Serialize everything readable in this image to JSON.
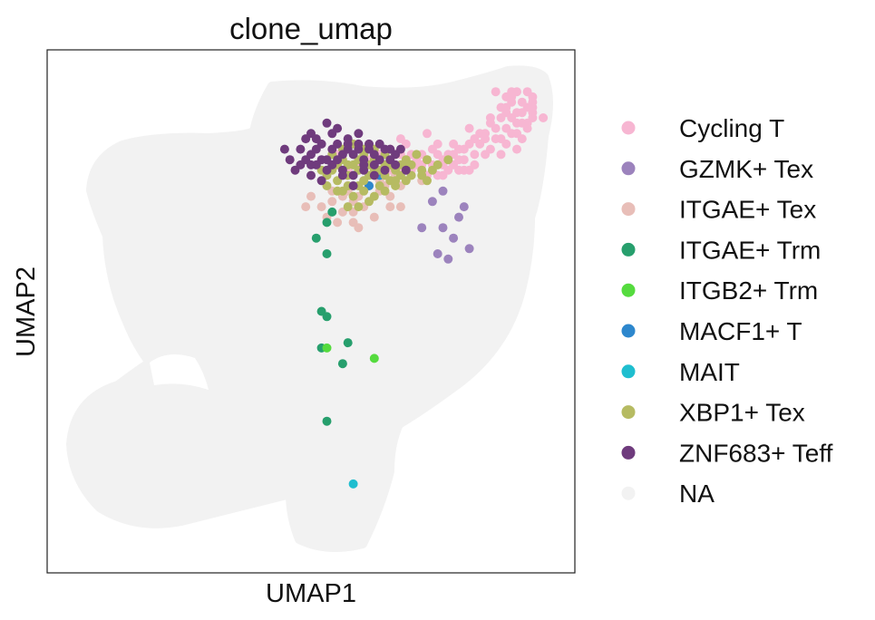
{
  "chart_data": {
    "type": "scatter",
    "title": "clone_umap",
    "xlabel": "UMAP1",
    "ylabel": "UMAP2",
    "grid": false,
    "axis_ticks": false,
    "legend_position": "right",
    "xlim": [
      0,
      100
    ],
    "ylim": [
      0,
      100
    ],
    "background_cells_color": "#f2f2f2",
    "series": [
      {
        "name": "Cycling T",
        "color": "#f7b6d2",
        "points": [
          [
            85,
            92
          ],
          [
            88,
            91
          ],
          [
            87,
            89
          ],
          [
            90,
            88
          ],
          [
            86,
            87
          ],
          [
            84,
            86
          ],
          [
            89,
            86
          ],
          [
            92,
            87
          ],
          [
            91,
            85
          ],
          [
            88,
            84
          ],
          [
            85,
            83
          ],
          [
            83,
            84
          ],
          [
            87,
            82
          ],
          [
            90,
            83
          ],
          [
            82,
            82
          ],
          [
            80,
            82
          ],
          [
            84,
            81
          ],
          [
            78,
            81
          ],
          [
            81,
            80
          ],
          [
            76,
            80
          ],
          [
            79,
            79
          ],
          [
            74,
            80
          ],
          [
            77,
            78
          ],
          [
            72,
            79
          ],
          [
            75,
            78
          ],
          [
            70,
            79
          ],
          [
            73,
            78
          ],
          [
            68,
            79
          ],
          [
            71,
            78
          ],
          [
            66,
            78
          ],
          [
            69,
            77
          ],
          [
            64,
            78
          ],
          [
            67,
            77
          ],
          [
            62,
            78
          ],
          [
            65,
            77
          ],
          [
            76,
            77
          ],
          [
            78,
            77
          ],
          [
            80,
            77
          ],
          [
            74,
            76
          ],
          [
            72,
            76
          ],
          [
            86,
            80
          ],
          [
            89,
            81
          ],
          [
            91,
            89
          ],
          [
            92,
            90
          ],
          [
            92,
            91
          ],
          [
            88,
            90
          ],
          [
            87,
            88
          ],
          [
            85,
            85
          ],
          [
            83,
            80
          ],
          [
            81,
            78
          ],
          [
            79,
            77
          ],
          [
            70,
            78
          ],
          [
            68,
            77
          ],
          [
            74,
            82
          ],
          [
            60,
            78
          ],
          [
            63,
            80
          ],
          [
            65,
            81
          ],
          [
            67,
            83
          ],
          [
            72,
            84
          ],
          [
            77,
            82
          ],
          [
            80,
            85
          ],
          [
            82,
            84
          ],
          [
            84,
            87
          ],
          [
            86,
            89
          ],
          [
            88,
            87
          ],
          [
            90,
            86
          ],
          [
            92,
            88
          ],
          [
            90,
            90
          ],
          [
            89,
            92
          ],
          [
            91,
            92
          ],
          [
            88,
            92
          ],
          [
            87,
            91
          ],
          [
            94,
            87
          ],
          [
            91,
            86
          ],
          [
            89,
            88
          ],
          [
            87,
            85
          ],
          [
            83,
            83
          ],
          [
            81,
            83
          ],
          [
            79,
            81
          ],
          [
            77,
            80
          ],
          [
            75,
            79
          ],
          [
            73,
            81
          ],
          [
            71,
            80
          ],
          [
            69,
            80
          ],
          [
            67,
            80
          ],
          [
            65,
            79
          ],
          [
            63,
            79
          ],
          [
            61,
            79
          ],
          [
            59,
            78
          ],
          [
            57,
            77
          ],
          [
            55,
            80
          ],
          [
            63,
            76
          ],
          [
            68,
            82
          ],
          [
            75,
            76
          ],
          [
            78,
            79
          ],
          [
            86,
            83
          ],
          [
            89,
            84
          ],
          [
            92,
            89
          ]
        ]
      },
      {
        "name": "GZMK+ Tex",
        "color": "#9c83bd",
        "points": [
          [
            75,
            73
          ],
          [
            73,
            71
          ],
          [
            79,
            70
          ],
          [
            78,
            68
          ],
          [
            75,
            66
          ],
          [
            71,
            66
          ],
          [
            77,
            64
          ],
          [
            74,
            61
          ],
          [
            76,
            60
          ],
          [
            80,
            62
          ]
        ]
      },
      {
        "name": "ITGAE+ Tex",
        "color": "#e8beb8",
        "points": [
          [
            57,
            73
          ],
          [
            59,
            72
          ],
          [
            63,
            73
          ],
          [
            65,
            72
          ],
          [
            58,
            71
          ],
          [
            60,
            70
          ],
          [
            54,
            71
          ],
          [
            56,
            69
          ],
          [
            52,
            70
          ],
          [
            65,
            70
          ],
          [
            62,
            68
          ],
          [
            58,
            69
          ],
          [
            55,
            67
          ],
          [
            53,
            68
          ],
          [
            61,
            74
          ],
          [
            64,
            74
          ],
          [
            67,
            74
          ],
          [
            57,
            74
          ],
          [
            60,
            75
          ],
          [
            63,
            75
          ],
          [
            66,
            76
          ],
          [
            69,
            76
          ],
          [
            71,
            75
          ],
          [
            60,
            77
          ],
          [
            62,
            76
          ],
          [
            50,
            72
          ],
          [
            49,
            70
          ],
          [
            58,
            67
          ],
          [
            59,
            66
          ],
          [
            67,
            70
          ],
          [
            56,
            72
          ],
          [
            54,
            73
          ]
        ]
      },
      {
        "name": "ITGAE+ Trm",
        "color": "#279f6d",
        "points": [
          [
            54,
            69
          ],
          [
            53,
            67
          ],
          [
            51,
            64
          ],
          [
            53,
            61
          ],
          [
            52,
            50
          ],
          [
            53,
            49
          ],
          [
            52,
            43
          ],
          [
            57,
            44
          ],
          [
            56,
            40
          ],
          [
            53,
            29
          ]
        ]
      },
      {
        "name": "ITGB2+ Trm",
        "color": "#55db3e",
        "points": [
          [
            53,
            43
          ],
          [
            62,
            41
          ]
        ]
      },
      {
        "name": "MACF1+ T",
        "color": "#2d87cd",
        "points": [
          [
            63,
            76
          ],
          [
            61,
            74
          ]
        ]
      },
      {
        "name": "MAIT",
        "color": "#1fbecf",
        "points": [
          [
            58,
            17
          ]
        ]
      },
      {
        "name": "XBP1+ Tex",
        "color": "#b6bb62",
        "points": [
          [
            54,
            77
          ],
          [
            56,
            79
          ],
          [
            58,
            78
          ],
          [
            60,
            80
          ],
          [
            62,
            79
          ],
          [
            64,
            78
          ],
          [
            66,
            77
          ],
          [
            68,
            79
          ],
          [
            70,
            80
          ],
          [
            72,
            79
          ],
          [
            55,
            75
          ],
          [
            57,
            76
          ],
          [
            59,
            74
          ],
          [
            61,
            76
          ],
          [
            63,
            77
          ],
          [
            65,
            75
          ],
          [
            67,
            76
          ],
          [
            69,
            76
          ],
          [
            71,
            77
          ],
          [
            73,
            77
          ],
          [
            56,
            73
          ],
          [
            58,
            72
          ],
          [
            60,
            73
          ],
          [
            62,
            72
          ],
          [
            64,
            73
          ],
          [
            66,
            74
          ],
          [
            68,
            75
          ],
          [
            57,
            70
          ],
          [
            59,
            70
          ],
          [
            61,
            71
          ],
          [
            53,
            74
          ],
          [
            55,
            73
          ],
          [
            52,
            77
          ],
          [
            54,
            80
          ],
          [
            56,
            81
          ],
          [
            58,
            82
          ],
          [
            60,
            81
          ],
          [
            62,
            81
          ],
          [
            64,
            80
          ],
          [
            66,
            80
          ],
          [
            72,
            75
          ],
          [
            74,
            78
          ],
          [
            76,
            79
          ],
          [
            68,
            78
          ],
          [
            65,
            78
          ],
          [
            63,
            74
          ],
          [
            59,
            79
          ],
          [
            57,
            78
          ],
          [
            55,
            78
          ],
          [
            53,
            76
          ],
          [
            60,
            75
          ],
          [
            62,
            77
          ],
          [
            64,
            76
          ],
          [
            66,
            75
          ],
          [
            67,
            78
          ],
          [
            69,
            78
          ],
          [
            71,
            76
          ],
          [
            57,
            74
          ],
          [
            59,
            77
          ],
          [
            61,
            78
          ]
        ]
      },
      {
        "name": "ZNF683+ Teff",
        "color": "#6f3b7d",
        "points": [
          [
            50,
            84
          ],
          [
            53,
            86
          ],
          [
            55,
            85
          ],
          [
            57,
            83
          ],
          [
            59,
            84
          ],
          [
            52,
            82
          ],
          [
            54,
            81
          ],
          [
            56,
            80
          ],
          [
            58,
            80
          ],
          [
            60,
            79
          ],
          [
            62,
            80
          ],
          [
            64,
            81
          ],
          [
            66,
            80
          ],
          [
            48,
            81
          ],
          [
            50,
            80
          ],
          [
            52,
            79
          ],
          [
            54,
            78
          ],
          [
            56,
            77
          ],
          [
            58,
            76
          ],
          [
            60,
            77
          ],
          [
            62,
            78
          ],
          [
            46,
            79
          ],
          [
            49,
            83
          ],
          [
            51,
            81
          ],
          [
            53,
            79
          ],
          [
            55,
            82
          ],
          [
            57,
            81
          ],
          [
            59,
            81
          ],
          [
            61,
            82
          ],
          [
            63,
            79
          ],
          [
            65,
            79
          ],
          [
            67,
            81
          ],
          [
            47,
            77
          ],
          [
            51,
            78
          ],
          [
            53,
            77
          ],
          [
            55,
            79
          ],
          [
            60,
            78
          ],
          [
            62,
            76
          ],
          [
            64,
            77
          ],
          [
            66,
            78
          ],
          [
            68,
            77
          ],
          [
            50,
            76
          ],
          [
            52,
            75
          ],
          [
            56,
            76
          ],
          [
            58,
            74
          ],
          [
            45,
            81
          ],
          [
            49,
            79
          ],
          [
            51,
            83
          ],
          [
            54,
            84
          ],
          [
            57,
            82
          ],
          [
            59,
            82
          ],
          [
            61,
            81
          ],
          [
            63,
            82
          ],
          [
            65,
            81
          ],
          [
            48,
            78
          ],
          [
            50,
            78
          ]
        ]
      }
    ],
    "legend": [
      {
        "label": "Cycling T",
        "color": "#f7b6d2"
      },
      {
        "label": "GZMK+ Tex",
        "color": "#9c83bd"
      },
      {
        "label": "ITGAE+ Tex",
        "color": "#e8beb8"
      },
      {
        "label": "ITGAE+ Trm",
        "color": "#279f6d"
      },
      {
        "label": "ITGB2+ Trm",
        "color": "#55db3e"
      },
      {
        "label": "MACF1+ T",
        "color": "#2d87cd"
      },
      {
        "label": "MAIT",
        "color": "#1fbecf"
      },
      {
        "label": "XBP1+ Tex",
        "color": "#b6bb62"
      },
      {
        "label": "ZNF683+ Teff",
        "color": "#6f3b7d"
      },
      {
        "label": "NA",
        "color": "#f2f2f2"
      }
    ]
  }
}
